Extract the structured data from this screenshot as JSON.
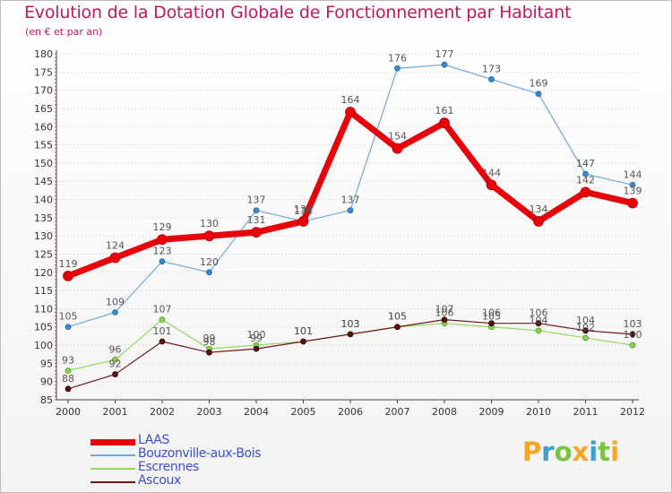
{
  "chart_data": {
    "type": "line",
    "title": "Evolution de la Dotation Globale de Fonctionnement par Habitant",
    "subtitle": "(en € et par an)",
    "categories": [
      "2000",
      "2001",
      "2002",
      "2003",
      "2004",
      "2005",
      "2006",
      "2007",
      "2008",
      "2009",
      "2010",
      "2011",
      "2012"
    ],
    "ylim": [
      85,
      180
    ],
    "yticks": [
      "85",
      "90",
      "95",
      "100",
      "105",
      "110",
      "115",
      "120",
      "125",
      "130",
      "135",
      "140",
      "145",
      "150",
      "155",
      "160",
      "165",
      "170",
      "175",
      "180"
    ],
    "grid": "horizontal dotted",
    "legend": "bottom-left",
    "series": [
      {
        "name": "LAAS",
        "color": "#e8000b",
        "values": [
          119,
          124,
          129,
          130,
          131,
          134,
          164,
          154,
          161,
          144,
          134,
          142,
          139
        ]
      },
      {
        "name": "Bouzonville-aux-Bois",
        "color": "#6fa8dc",
        "values": [
          105,
          109,
          123,
          120,
          137,
          134,
          137,
          176,
          177,
          173,
          169,
          147,
          144
        ]
      },
      {
        "name": "Escrennes",
        "color": "#93d85a",
        "values": [
          93,
          96,
          107,
          99,
          100,
          101,
          103,
          105,
          106,
          105,
          104,
          102,
          100
        ]
      },
      {
        "name": "Ascoux",
        "color": "#6b1a1a",
        "values": [
          88,
          92,
          101,
          98,
          99,
          101,
          103,
          105,
          107,
          106,
          106,
          104,
          103
        ]
      }
    ]
  },
  "brand": {
    "letters": [
      {
        "char": "P",
        "color": "#f5a623"
      },
      {
        "char": "r",
        "color": "#3aa0d8"
      },
      {
        "char": "o",
        "color": "#7cc242"
      },
      {
        "char": "x",
        "color": "#f5a623"
      },
      {
        "char": "i",
        "color": "#3aa0d8"
      },
      {
        "char": "t",
        "color": "#7cc242"
      },
      {
        "char": "i",
        "color": "#f5a623"
      }
    ]
  }
}
